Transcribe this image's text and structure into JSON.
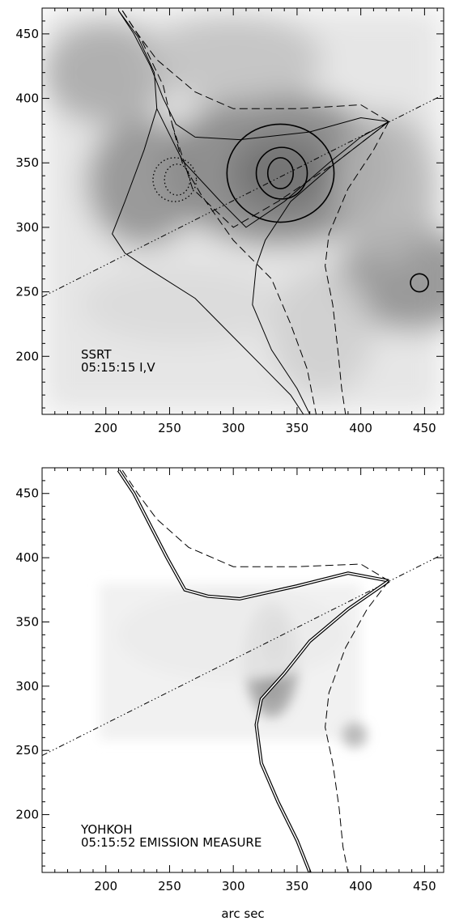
{
  "chart_data": [
    {
      "type": "heatmap",
      "panel": "top",
      "xlim": [
        150,
        465
      ],
      "ylim": [
        155,
        470
      ],
      "x_ticks": [
        200,
        250,
        300,
        350,
        400,
        450
      ],
      "y_ticks": [
        200,
        250,
        300,
        350,
        400,
        450
      ],
      "annotation": [
        "SSRT",
        "05:15:15 I,V"
      ],
      "xlabel": "",
      "ylabel": "",
      "colormap": "inverted-gray",
      "background_blobs": [
        {
          "x": 338,
          "y": 342,
          "rx": 40,
          "ry": 30,
          "intensity": 0.9
        },
        {
          "x": 335,
          "y": 345,
          "rx": 90,
          "ry": 60,
          "intensity": 0.5
        },
        {
          "x": 230,
          "y": 335,
          "rx": 45,
          "ry": 50,
          "intensity": 0.45
        },
        {
          "x": 200,
          "y": 420,
          "rx": 50,
          "ry": 40,
          "intensity": 0.35
        },
        {
          "x": 440,
          "y": 260,
          "rx": 60,
          "ry": 40,
          "intensity": 0.45
        },
        {
          "x": 300,
          "y": 430,
          "rx": 70,
          "ry": 35,
          "intensity": 0.25
        },
        {
          "x": 420,
          "y": 330,
          "rx": 40,
          "ry": 60,
          "intensity": 0.3
        },
        {
          "x": 260,
          "y": 240,
          "rx": 80,
          "ry": 30,
          "intensity": 0.15
        },
        {
          "x": 370,
          "y": 220,
          "rx": 40,
          "ry": 50,
          "intensity": 0.2
        }
      ],
      "contours_I": [
        {
          "cx": 337,
          "cy": 342,
          "rx": 42,
          "ry": 38
        },
        {
          "cx": 338,
          "cy": 342,
          "rx": 20,
          "ry": 20
        },
        {
          "cx": 337,
          "cy": 342,
          "rx": 10,
          "ry": 12
        },
        {
          "cx": 446,
          "cy": 257,
          "rx": 7,
          "ry": 7
        }
      ],
      "contours_V": [
        {
          "cx": 254,
          "cy": 337,
          "rx": 17,
          "ry": 17
        },
        {
          "cx": 256,
          "cy": 337,
          "rx": 10,
          "ry": 12
        }
      ],
      "dash_dot_line": [
        [
          150,
          246
        ],
        [
          465,
          403
        ]
      ],
      "solid_lines": [
        [
          [
            210,
            468
          ],
          [
            222,
            450
          ],
          [
            235,
            425
          ],
          [
            245,
            400
          ],
          [
            255,
            380
          ],
          [
            270,
            370
          ],
          [
            305,
            368
          ],
          [
            360,
            374
          ],
          [
            400,
            385
          ],
          [
            422,
            382
          ]
        ],
        [
          [
            422,
            382
          ],
          [
            380,
            350
          ],
          [
            345,
            320
          ],
          [
            325,
            290
          ],
          [
            318,
            270
          ],
          [
            315,
            240
          ],
          [
            330,
            205
          ],
          [
            350,
            175
          ],
          [
            360,
            155
          ]
        ],
        [
          [
            210,
            468
          ],
          [
            225,
            448
          ],
          [
            238,
            420
          ],
          [
            240,
            392
          ],
          [
            230,
            360
          ],
          [
            215,
            320
          ],
          [
            205,
            295
          ],
          [
            215,
            280
          ],
          [
            230,
            270
          ],
          [
            270,
            245
          ],
          [
            300,
            215
          ],
          [
            325,
            190
          ],
          [
            345,
            170
          ],
          [
            355,
            155
          ]
        ],
        [
          [
            240,
            392
          ],
          [
            260,
            352
          ],
          [
            290,
            320
          ],
          [
            310,
            300
          ],
          [
            340,
            320
          ],
          [
            375,
            350
          ],
          [
            400,
            370
          ],
          [
            422,
            382
          ]
        ]
      ],
      "dashed_lines": [
        [
          [
            213,
            468
          ],
          [
            225,
            450
          ],
          [
            240,
            430
          ],
          [
            270,
            405
          ],
          [
            300,
            392
          ],
          [
            350,
            392
          ],
          [
            400,
            395
          ],
          [
            422,
            382
          ]
        ],
        [
          [
            422,
            382
          ],
          [
            410,
            360
          ],
          [
            390,
            330
          ],
          [
            375,
            295
          ],
          [
            372,
            270
          ],
          [
            378,
            240
          ],
          [
            382,
            205
          ],
          [
            385,
            175
          ],
          [
            388,
            155
          ]
        ],
        [
          [
            213,
            468
          ],
          [
            228,
            445
          ],
          [
            245,
            410
          ],
          [
            252,
            380
          ],
          [
            260,
            350
          ],
          [
            275,
            325
          ],
          [
            300,
            290
          ],
          [
            330,
            260
          ],
          [
            345,
            225
          ],
          [
            358,
            190
          ],
          [
            365,
            155
          ]
        ],
        [
          [
            252,
            380
          ],
          [
            268,
            330
          ],
          [
            300,
            300
          ],
          [
            335,
            320
          ],
          [
            380,
            350
          ],
          [
            422,
            382
          ]
        ]
      ]
    },
    {
      "type": "heatmap",
      "panel": "bottom",
      "xlim": [
        150,
        465
      ],
      "ylim": [
        155,
        470
      ],
      "x_ticks": [
        200,
        250,
        300,
        350,
        400,
        450
      ],
      "y_ticks": [
        200,
        250,
        300,
        350,
        400,
        450
      ],
      "annotation": [
        "YOHKOH",
        "05:15:52 EMISSION MEASURE"
      ],
      "xlabel": "arc sec",
      "ylabel": "",
      "colormap": "inverted-gray",
      "field_of_view": {
        "x": [
          195,
          400
        ],
        "y": [
          258,
          380
        ]
      },
      "background_blobs": [
        {
          "x": 332,
          "y": 336,
          "rx": 8,
          "ry": 18,
          "intensity": 0.95
        },
        {
          "x": 330,
          "y": 300,
          "rx": 10,
          "ry": 14,
          "intensity": 0.55
        },
        {
          "x": 330,
          "y": 320,
          "rx": 22,
          "ry": 45,
          "intensity": 0.35
        },
        {
          "x": 395,
          "y": 262,
          "rx": 10,
          "ry": 10,
          "intensity": 0.3
        },
        {
          "x": 300,
          "y": 340,
          "rx": 90,
          "ry": 35,
          "intensity": 0.08
        }
      ],
      "dash_dot_line": [
        [
          150,
          246
        ],
        [
          465,
          403
        ]
      ],
      "double_lines": [
        [
          [
            210,
            468
          ],
          [
            222,
            450
          ],
          [
            235,
            425
          ],
          [
            248,
            400
          ],
          [
            262,
            375
          ],
          [
            280,
            370
          ],
          [
            305,
            368
          ],
          [
            350,
            378
          ],
          [
            390,
            388
          ],
          [
            422,
            382
          ]
        ],
        [
          [
            422,
            382
          ],
          [
            390,
            360
          ],
          [
            360,
            335
          ],
          [
            340,
            310
          ],
          [
            322,
            290
          ],
          [
            318,
            270
          ],
          [
            322,
            240
          ],
          [
            335,
            210
          ],
          [
            350,
            180
          ],
          [
            360,
            155
          ]
        ]
      ],
      "dashed_lines": [
        [
          [
            213,
            468
          ],
          [
            225,
            450
          ],
          [
            240,
            430
          ],
          [
            265,
            408
          ],
          [
            300,
            393
          ],
          [
            350,
            393
          ],
          [
            400,
            395
          ],
          [
            422,
            382
          ]
        ],
        [
          [
            422,
            382
          ],
          [
            405,
            360
          ],
          [
            388,
            330
          ],
          [
            375,
            295
          ],
          [
            372,
            268
          ],
          [
            378,
            240
          ],
          [
            383,
            205
          ],
          [
            386,
            175
          ],
          [
            390,
            155
          ]
        ]
      ]
    }
  ]
}
